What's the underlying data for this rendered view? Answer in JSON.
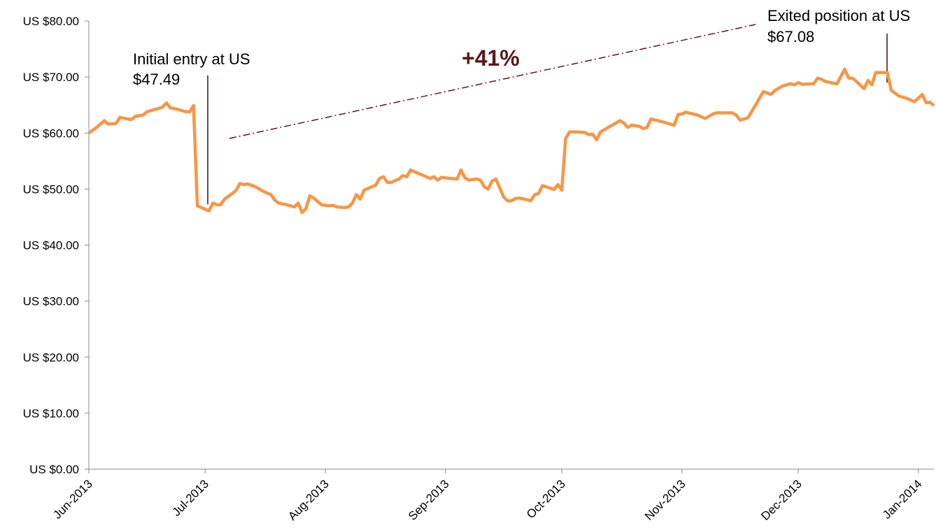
{
  "chart_data": {
    "type": "line",
    "x": [
      0,
      2,
      4,
      5,
      7,
      8,
      10,
      11,
      12,
      14,
      15,
      17,
      19,
      20,
      21,
      23,
      25,
      26,
      27,
      28,
      30,
      31,
      32,
      33,
      34,
      35,
      37,
      38,
      39,
      40,
      41,
      43,
      45,
      47,
      48,
      49,
      51,
      53,
      54,
      55,
      56,
      57,
      58,
      59,
      60,
      62,
      63,
      64,
      66,
      67,
      68,
      69,
      70,
      71,
      73,
      74,
      75,
      76,
      77,
      78,
      80,
      81,
      82,
      83,
      85,
      87,
      88,
      89,
      90,
      91,
      93,
      95,
      96,
      97,
      98,
      100,
      101,
      102,
      103,
      104,
      105,
      106,
      107,
      108,
      109,
      110,
      111,
      113,
      114,
      115,
      116,
      117,
      118,
      120,
      121,
      122,
      123,
      124,
      126,
      128,
      129,
      130,
      131,
      132,
      134,
      137,
      138,
      139,
      140,
      142,
      143,
      144,
      145,
      148,
      150,
      151,
      152,
      153,
      154,
      157,
      159,
      161,
      162,
      166,
      167,
      168,
      170,
      172,
      173,
      174,
      176,
      177,
      179,
      181,
      182,
      183,
      184,
      187,
      188,
      189,
      190,
      192,
      193,
      195,
      196,
      197,
      198,
      200,
      201,
      202,
      203,
      206,
      207,
      209,
      211,
      213,
      215,
      216,
      217,
      218
    ],
    "series": [
      {
        "color": "#f79646",
        "values": [
          60.0,
          61,
          62.2,
          61.6,
          61.7,
          62.8,
          62.5,
          62.4,
          63.0,
          63.2,
          63.8,
          64.2,
          64.6,
          65.4,
          64.5,
          64.2,
          63.8,
          63.8,
          64.9,
          47.0,
          46.4,
          46.1,
          47.5,
          47.2,
          47.2,
          48.2,
          49.2,
          49.8,
          51.0,
          50.8,
          50.9,
          50.4,
          49.6,
          49.0,
          48.0,
          47.5,
          47.2,
          46.8,
          47.5,
          45.8,
          46.5,
          48.8,
          48.4,
          47.8,
          47.2,
          47.0,
          47.1,
          46.8,
          46.7,
          46.8,
          47.5,
          49.0,
          48.2,
          49.8,
          50.4,
          50.7,
          51.9,
          52.2,
          51.2,
          51.2,
          51.8,
          52.4,
          52.2,
          53.4,
          52.8,
          52.2,
          51.9,
          52.2,
          51.6,
          52.1,
          51.9,
          51.8,
          53.4,
          52.0,
          51.6,
          51.8,
          51.6,
          50.4,
          50.0,
          51.4,
          51.8,
          50.2,
          48.6,
          47.9,
          47.9,
          48.3,
          48.4,
          48.1,
          47.9,
          49.0,
          49.2,
          50.6,
          50.4,
          49.9,
          50.8,
          49.8,
          59.0,
          60.2,
          60.2,
          60.1,
          59.7,
          59.8,
          58.8,
          60.2,
          61.0,
          62.2,
          61.8,
          61.0,
          61.4,
          61.2,
          60.8,
          61.0,
          62.5,
          62.0,
          61.6,
          61.4,
          63.3,
          63.4,
          63.7,
          63.2,
          62.6,
          63.4,
          63.6,
          63.6,
          63.2,
          62.3,
          62.7,
          65.0,
          66.2,
          67.4,
          66.9,
          67.6,
          68.4,
          68.8,
          68.6,
          69.0,
          68.7,
          68.8,
          69.8,
          69.6,
          69.2,
          68.9,
          68.8,
          71.4,
          69.8,
          69.8,
          69.2,
          67.9,
          69.4,
          68.6,
          70.8,
          70.8,
          67.6,
          66.6,
          66.2,
          65.6,
          66.9,
          65.4,
          65.5,
          64.9
        ]
      }
    ],
    "xlim": [
      0,
      218
    ],
    "xticks": [
      {
        "value": 0,
        "label": "Jun-2013"
      },
      {
        "value": 30,
        "label": "Jul-2013"
      },
      {
        "value": 61,
        "label": "Aug-2013"
      },
      {
        "value": 92,
        "label": "Sep-2013"
      },
      {
        "value": 122,
        "label": "Oct-2013"
      },
      {
        "value": 153,
        "label": "Nov-2013"
      },
      {
        "value": 183,
        "label": "Dec-2013"
      },
      {
        "value": 214,
        "label": "Jan-2014"
      }
    ],
    "ylim": [
      0,
      80
    ],
    "yticks": [
      {
        "value": 0,
        "label": "US $0.00"
      },
      {
        "value": 10,
        "label": "US $10.00"
      },
      {
        "value": 20,
        "label": "US $20.00"
      },
      {
        "value": 30,
        "label": "US $30.00"
      },
      {
        "value": 40,
        "label": "US $40.00"
      },
      {
        "value": 50,
        "label": "US $50.00"
      },
      {
        "value": 60,
        "label": "US $60.00"
      },
      {
        "value": 70,
        "label": "US $70.00"
      },
      {
        "value": 80,
        "label": "US $80.00"
      }
    ],
    "grid": false,
    "annotations": [
      {
        "lines": [
          "Initial entry at US",
          "$47.49"
        ]
      },
      {
        "lines": [
          "Exited position at US",
          "$67.08"
        ]
      },
      {
        "text": "+41%"
      }
    ]
  }
}
